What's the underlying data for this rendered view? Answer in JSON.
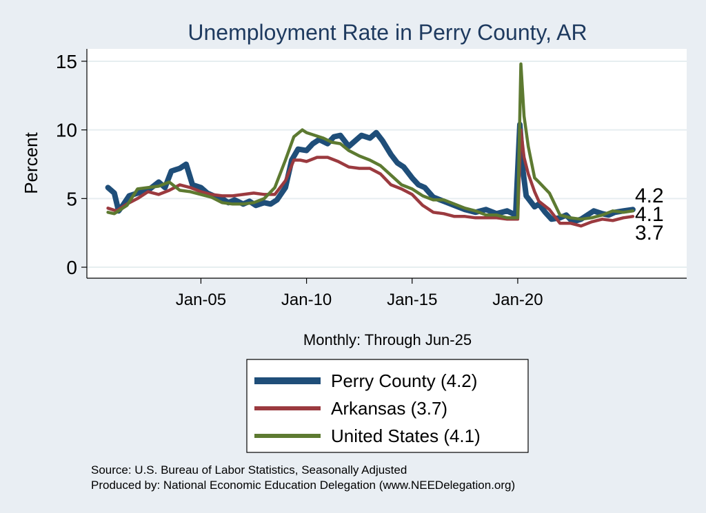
{
  "colors": {
    "background": "#e9eef3",
    "plot_bg": "#ffffff",
    "title": "#1e3a5f",
    "grid": "#e6eef0",
    "perry": "#1f4e79",
    "arkansas": "#9b3a3f",
    "us": "#5d7a31"
  },
  "chart_data": {
    "type": "line",
    "title": "Unemployment Rate in Perry  County, AR",
    "ylabel": "Percent",
    "xlabel": "Monthly: Through Jun-25",
    "ylim": [
      -0.8,
      15.9
    ],
    "xlim": [
      1999.6,
      2028.0
    ],
    "yticks": [
      0,
      5,
      10,
      15
    ],
    "xticks": [
      {
        "label": "Jan-05",
        "x": 2005.0
      },
      {
        "label": "Jan-10",
        "x": 2010.0
      },
      {
        "label": "Jan-15",
        "x": 2015.0
      },
      {
        "label": "Jan-20",
        "x": 2020.0
      }
    ],
    "grid": true,
    "legend_position": "bottom-center",
    "end_labels": [
      "4.2",
      "4.1",
      "3.7"
    ],
    "series": [
      {
        "name": "Perry  County (4.2)",
        "key": "perry",
        "x": [
          2000.6,
          2000.9,
          2001.1,
          2001.3,
          2001.6,
          2002.0,
          2002.5,
          2003.0,
          2003.3,
          2003.6,
          2004.0,
          2004.3,
          2004.6,
          2005.0,
          2005.3,
          2005.6,
          2006.0,
          2006.3,
          2006.6,
          2007.0,
          2007.3,
          2007.6,
          2008.0,
          2008.3,
          2008.6,
          2009.0,
          2009.3,
          2009.6,
          2010.0,
          2010.3,
          2010.6,
          2011.0,
          2011.3,
          2011.6,
          2012.0,
          2012.3,
          2012.6,
          2013.0,
          2013.3,
          2013.6,
          2014.0,
          2014.3,
          2014.6,
          2015.0,
          2015.3,
          2015.6,
          2016.0,
          2016.5,
          2017.0,
          2017.5,
          2018.0,
          2018.5,
          2019.0,
          2019.5,
          2019.9,
          2020.1,
          2020.25,
          2020.4,
          2020.6,
          2020.8,
          2021.0,
          2021.3,
          2021.6,
          2022.0,
          2022.3,
          2022.6,
          2023.0,
          2023.3,
          2023.6,
          2024.0,
          2024.3,
          2024.6,
          2025.0,
          2025.45
        ],
        "values": [
          5.8,
          5.4,
          4.1,
          4.5,
          5.2,
          5.4,
          5.6,
          6.2,
          5.8,
          7.0,
          7.2,
          7.5,
          6.0,
          5.8,
          5.4,
          5.2,
          5.0,
          4.7,
          4.9,
          4.6,
          4.8,
          4.5,
          4.7,
          4.6,
          4.9,
          5.8,
          7.8,
          8.6,
          8.5,
          9.0,
          9.3,
          9.0,
          9.5,
          9.6,
          8.8,
          9.2,
          9.6,
          9.4,
          9.8,
          9.2,
          8.2,
          7.6,
          7.3,
          6.5,
          6.0,
          5.8,
          5.1,
          4.8,
          4.5,
          4.2,
          4.0,
          4.2,
          3.9,
          4.1,
          3.8,
          10.4,
          7.0,
          5.2,
          4.8,
          4.4,
          4.6,
          4.0,
          3.5,
          3.6,
          3.8,
          3.3,
          3.5,
          3.8,
          4.1,
          3.9,
          3.8,
          4.0,
          4.1,
          4.2
        ]
      },
      {
        "name": "Arkansas (3.7)",
        "key": "arkansas",
        "x": [
          2000.6,
          2001.0,
          2001.5,
          2002.0,
          2002.5,
          2003.0,
          2003.5,
          2004.0,
          2004.5,
          2005.0,
          2005.5,
          2006.0,
          2006.5,
          2007.0,
          2007.5,
          2008.0,
          2008.5,
          2009.0,
          2009.4,
          2009.7,
          2010.0,
          2010.5,
          2011.0,
          2011.5,
          2012.0,
          2012.5,
          2013.0,
          2013.5,
          2014.0,
          2014.5,
          2015.0,
          2015.5,
          2016.0,
          2016.5,
          2017.0,
          2017.5,
          2018.0,
          2018.5,
          2019.0,
          2019.5,
          2020.0,
          2020.15,
          2020.3,
          2020.5,
          2020.8,
          2021.0,
          2021.5,
          2022.0,
          2022.5,
          2023.0,
          2023.5,
          2024.0,
          2024.5,
          2025.0,
          2025.45
        ],
        "values": [
          4.3,
          4.1,
          4.6,
          5.0,
          5.5,
          5.3,
          5.6,
          6.0,
          5.8,
          5.5,
          5.3,
          5.2,
          5.2,
          5.3,
          5.4,
          5.3,
          5.3,
          6.3,
          7.8,
          7.8,
          7.7,
          8.0,
          8.0,
          7.7,
          7.3,
          7.2,
          7.2,
          6.8,
          6.0,
          5.7,
          5.3,
          4.5,
          4.0,
          3.9,
          3.7,
          3.7,
          3.6,
          3.6,
          3.6,
          3.5,
          3.5,
          10.0,
          8.0,
          6.8,
          5.5,
          4.8,
          4.2,
          3.2,
          3.2,
          3.0,
          3.3,
          3.5,
          3.4,
          3.6,
          3.7
        ]
      },
      {
        "name": "United States (4.1)",
        "key": "us",
        "x": [
          2000.6,
          2000.9,
          2001.2,
          2001.5,
          2002.0,
          2002.5,
          2003.0,
          2003.5,
          2004.0,
          2004.5,
          2005.0,
          2005.5,
          2006.0,
          2006.5,
          2007.0,
          2007.5,
          2008.0,
          2008.5,
          2009.0,
          2009.4,
          2009.8,
          2010.0,
          2010.4,
          2010.8,
          2011.2,
          2011.6,
          2012.0,
          2012.5,
          2013.0,
          2013.5,
          2014.0,
          2014.5,
          2015.0,
          2015.5,
          2016.0,
          2016.5,
          2017.0,
          2017.5,
          2018.0,
          2018.5,
          2019.0,
          2019.5,
          2020.0,
          2020.15,
          2020.3,
          2020.5,
          2020.8,
          2021.0,
          2021.5,
          2022.0,
          2022.5,
          2023.0,
          2023.5,
          2024.0,
          2024.5,
          2025.0,
          2025.45
        ],
        "values": [
          4.0,
          3.9,
          4.2,
          4.5,
          5.7,
          5.8,
          5.9,
          6.2,
          5.6,
          5.5,
          5.3,
          5.1,
          4.7,
          4.6,
          4.6,
          4.7,
          5.0,
          5.8,
          7.8,
          9.5,
          10.0,
          9.8,
          9.6,
          9.4,
          9.1,
          9.0,
          8.5,
          8.1,
          7.8,
          7.4,
          6.7,
          6.0,
          5.7,
          5.2,
          4.9,
          4.9,
          4.6,
          4.3,
          4.1,
          3.8,
          3.8,
          3.6,
          3.6,
          14.8,
          11.0,
          8.8,
          6.5,
          6.2,
          5.4,
          3.8,
          3.6,
          3.5,
          3.6,
          3.8,
          4.1,
          4.0,
          4.1
        ]
      }
    ]
  },
  "legend": {
    "items": [
      "Perry  County (4.2)",
      "Arkansas (3.7)",
      "United States (4.1)"
    ]
  },
  "source": {
    "line1": "Source: U.S. Bureau of Labor Statistics, Seasonally Adjusted",
    "line2": "Produced by: National Economic Education Delegation (www.NEEDelegation.org)"
  }
}
